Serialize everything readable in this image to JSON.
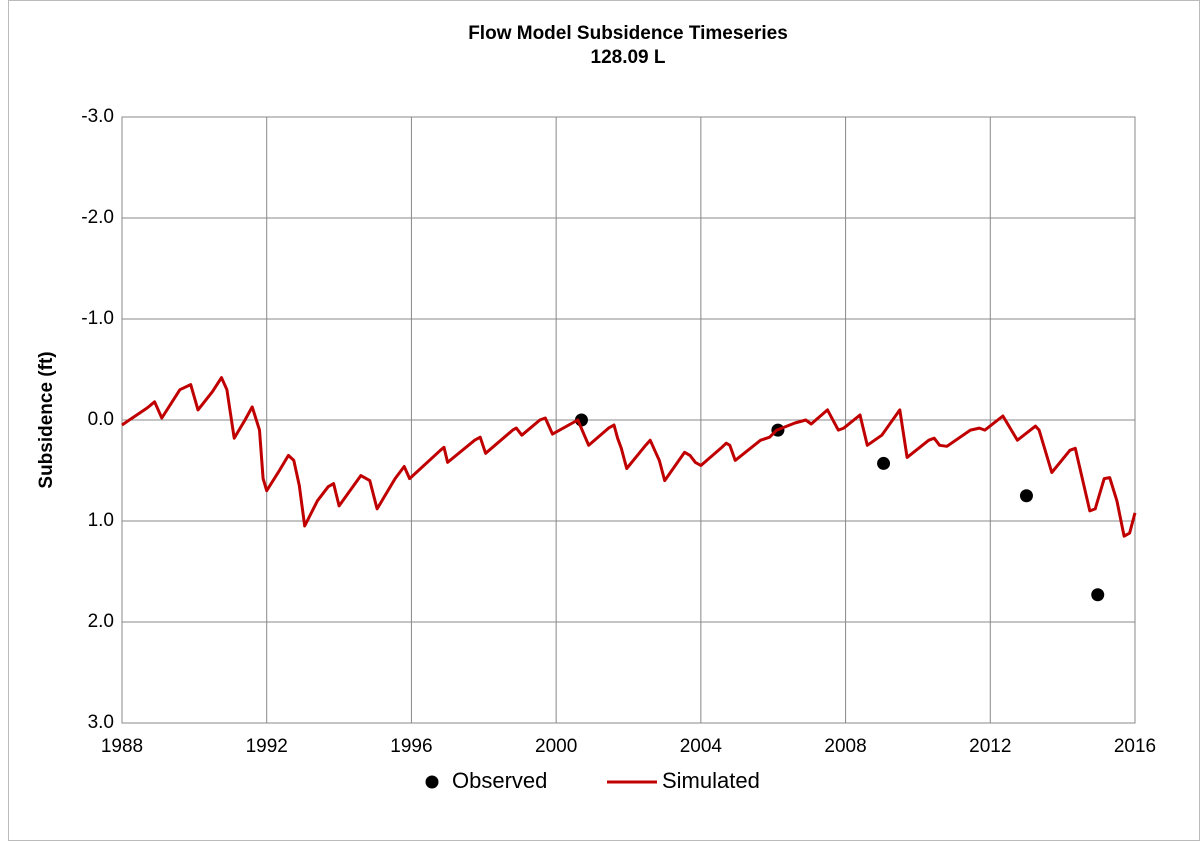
{
  "chart_data": {
    "type": "line",
    "title": "Flow Model Subsidence Timeseries",
    "subtitle": "128.09 L",
    "y_label": "Subsidence (ft)",
    "xlim": [
      1988,
      2016
    ],
    "xticks": [
      1988,
      1992,
      1996,
      2000,
      2004,
      2008,
      2012,
      2016
    ],
    "ylim": [
      -3,
      3
    ],
    "y_inverted": true,
    "yticks": [
      {
        "value": -3,
        "label": "-3.0"
      },
      {
        "value": -2,
        "label": "-2.0"
      },
      {
        "value": -1,
        "label": "-1.0"
      },
      {
        "value": 0,
        "label": "0.0"
      },
      {
        "value": 1,
        "label": "1.0"
      },
      {
        "value": 2,
        "label": "2.0"
      },
      {
        "value": 3,
        "label": "3.0"
      }
    ],
    "grid": true,
    "legend": "bottom",
    "series": [
      {
        "name": "Observed",
        "mode": "markers",
        "color": "#000000",
        "x": [
          2000.7,
          2006.13,
          2009.05,
          2013.0,
          2014.97
        ],
        "values": [
          0.0,
          0.1,
          0.43,
          0.75,
          1.73
        ]
      },
      {
        "name": "Simulated",
        "mode": "line",
        "color": "#c00000",
        "x": [
          1988.0,
          1988.7,
          1988.9,
          1989.1,
          1989.6,
          1989.9,
          1990.1,
          1990.5,
          1990.75,
          1990.9,
          1991.1,
          1991.4,
          1991.6,
          1991.8,
          1991.9,
          1992.0,
          1992.35,
          1992.6,
          1992.75,
          1992.9,
          1993.05,
          1993.4,
          1993.7,
          1993.85,
          1994.0,
          1994.6,
          1994.85,
          1995.05,
          1995.55,
          1995.8,
          1995.95,
          1996.8,
          1996.9,
          1997.0,
          1997.75,
          1997.9,
          1998.05,
          1998.8,
          1998.9,
          1999.05,
          1999.55,
          1999.7,
          1999.9,
          2000.6,
          2000.9,
          2001.45,
          2001.6,
          2001.7,
          2001.8,
          2001.95,
          2002.45,
          2002.6,
          2002.75,
          2002.85,
          2003.0,
          2003.55,
          2003.7,
          2003.85,
          2004.0,
          2004.55,
          2004.7,
          2004.8,
          2004.95,
          2005.65,
          2005.9,
          2006.1,
          2006.6,
          2006.9,
          2007.05,
          2007.5,
          2007.8,
          2007.95,
          2008.4,
          2008.6,
          2009.0,
          2009.5,
          2009.7,
          2010.3,
          2010.45,
          2010.6,
          2010.8,
          2011.45,
          2011.7,
          2011.85,
          2012.35,
          2012.75,
          2013.25,
          2013.35,
          2013.7,
          2014.2,
          2014.35,
          2014.75,
          2014.9,
          2015.15,
          2015.3,
          2015.5,
          2015.7,
          2015.85,
          2016.0
        ],
        "values": [
          0.05,
          -0.12,
          -0.18,
          -0.02,
          -0.3,
          -0.35,
          -0.1,
          -0.28,
          -0.42,
          -0.3,
          0.18,
          0.0,
          -0.13,
          0.1,
          0.58,
          0.7,
          0.5,
          0.35,
          0.4,
          0.65,
          1.05,
          0.8,
          0.66,
          0.63,
          0.85,
          0.55,
          0.6,
          0.88,
          0.58,
          0.46,
          0.58,
          0.3,
          0.27,
          0.42,
          0.2,
          0.17,
          0.33,
          0.1,
          0.08,
          0.15,
          0.0,
          -0.02,
          0.14,
          0.0,
          0.25,
          0.08,
          0.05,
          0.18,
          0.28,
          0.48,
          0.26,
          0.2,
          0.32,
          0.4,
          0.6,
          0.32,
          0.35,
          0.42,
          0.45,
          0.28,
          0.23,
          0.25,
          0.4,
          0.2,
          0.17,
          0.1,
          0.03,
          0.0,
          0.04,
          -0.1,
          0.1,
          0.08,
          -0.05,
          0.25,
          0.15,
          -0.1,
          0.37,
          0.2,
          0.18,
          0.25,
          0.26,
          0.1,
          0.08,
          0.1,
          -0.04,
          0.2,
          0.06,
          0.1,
          0.52,
          0.3,
          0.28,
          0.9,
          0.88,
          0.58,
          0.57,
          0.8,
          1.15,
          1.12,
          0.92
        ]
      }
    ]
  }
}
